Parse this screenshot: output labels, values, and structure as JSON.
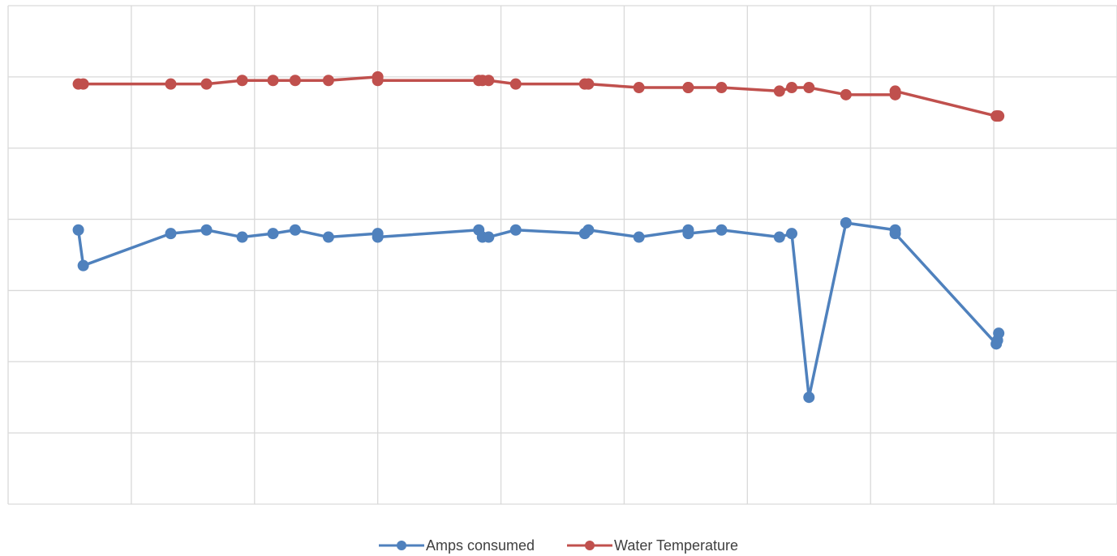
{
  "chart_data": {
    "type": "line",
    "title": "",
    "xlabel": "",
    "ylabel": "",
    "grid": true,
    "legend_position": "bottom",
    "xlim": [
      0,
      9
    ],
    "ylim": [
      0,
      7
    ],
    "series": [
      {
        "name": "Amps consumed",
        "color": "#4F81BD",
        "points": [
          [
            0.57,
            3.85
          ],
          [
            0.61,
            3.35
          ],
          [
            1.32,
            3.8
          ],
          [
            1.61,
            3.85
          ],
          [
            1.9,
            3.75
          ],
          [
            2.15,
            3.8
          ],
          [
            2.33,
            3.85
          ],
          [
            2.6,
            3.75
          ],
          [
            3.0,
            3.8
          ],
          [
            3.0,
            3.75
          ],
          [
            3.82,
            3.85
          ],
          [
            3.85,
            3.75
          ],
          [
            3.9,
            3.75
          ],
          [
            4.12,
            3.85
          ],
          [
            4.68,
            3.8
          ],
          [
            4.71,
            3.85
          ],
          [
            5.12,
            3.75
          ],
          [
            5.52,
            3.85
          ],
          [
            5.52,
            3.8
          ],
          [
            5.79,
            3.85
          ],
          [
            6.26,
            3.75
          ],
          [
            6.36,
            3.8
          ],
          [
            6.5,
            1.5
          ],
          [
            6.8,
            3.95
          ],
          [
            7.2,
            3.85
          ],
          [
            7.2,
            3.8
          ],
          [
            8.02,
            2.25
          ],
          [
            8.03,
            2.3
          ],
          [
            8.04,
            2.4
          ]
        ]
      },
      {
        "name": "Water Temperature",
        "color": "#C0504D",
        "points": [
          [
            0.57,
            5.9
          ],
          [
            0.61,
            5.9
          ],
          [
            1.32,
            5.9
          ],
          [
            1.61,
            5.9
          ],
          [
            1.9,
            5.95
          ],
          [
            2.15,
            5.95
          ],
          [
            2.33,
            5.95
          ],
          [
            2.6,
            5.95
          ],
          [
            3.0,
            6.0
          ],
          [
            3.0,
            5.95
          ],
          [
            3.82,
            5.95
          ],
          [
            3.85,
            5.95
          ],
          [
            3.9,
            5.95
          ],
          [
            4.12,
            5.9
          ],
          [
            4.68,
            5.9
          ],
          [
            4.71,
            5.9
          ],
          [
            5.12,
            5.85
          ],
          [
            5.52,
            5.85
          ],
          [
            5.52,
            5.85
          ],
          [
            5.79,
            5.85
          ],
          [
            6.26,
            5.8
          ],
          [
            6.36,
            5.85
          ],
          [
            6.5,
            5.85
          ],
          [
            6.8,
            5.75
          ],
          [
            7.2,
            5.75
          ],
          [
            7.2,
            5.8
          ],
          [
            8.02,
            5.45
          ],
          [
            8.03,
            5.45
          ],
          [
            8.04,
            5.45
          ]
        ]
      }
    ]
  }
}
